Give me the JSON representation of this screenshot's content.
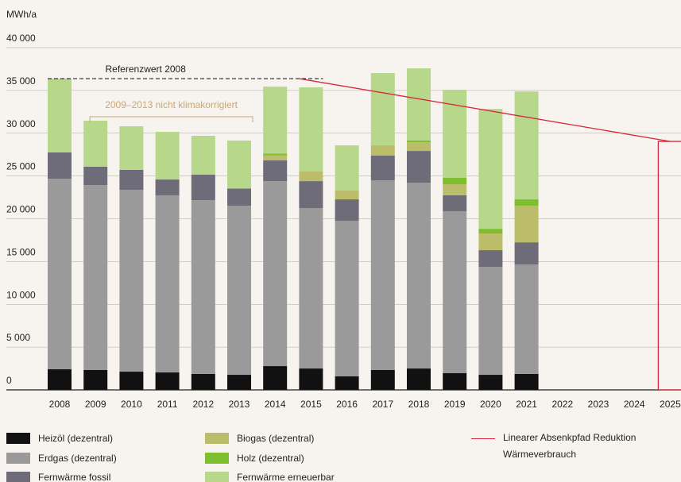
{
  "chart_data": {
    "type": "stacked_bar",
    "y_label": "MWh/a",
    "categories": [
      "2008",
      "2009",
      "2010",
      "2011",
      "2012",
      "2013",
      "2014",
      "2015",
      "2016",
      "2017",
      "2018",
      "2019",
      "2020",
      "2021",
      "2022",
      "2023",
      "2024",
      "2025"
    ],
    "series": [
      {
        "name": "Heizöl (dezentral)",
        "color": "#111111",
        "values": [
          2410,
          2320,
          2130,
          2040,
          1860,
          1760,
          2780,
          2500,
          1580,
          2320,
          2500,
          1950,
          1760,
          1860,
          null,
          null,
          null,
          null
        ]
      },
      {
        "name": "Erdgas (dezentral)",
        "color": "#9a9a9a",
        "values": [
          22270,
          21620,
          21260,
          20700,
          20320,
          19770,
          21630,
          18750,
          18190,
          22180,
          21720,
          18920,
          12620,
          12800,
          null,
          null,
          null,
          null
        ]
      },
      {
        "name": "Fernwärme fossil",
        "color": "#6e6c78",
        "values": [
          3070,
          2140,
          2320,
          1850,
          2970,
          1950,
          2410,
          3150,
          2500,
          2880,
          3710,
          1870,
          1950,
          2590,
          null,
          null,
          null,
          null
        ]
      },
      {
        "name": "Biogas (dezentral)",
        "color": "#bcbd6a",
        "values": [
          0,
          0,
          0,
          0,
          0,
          0,
          600,
          1120,
          1020,
          1200,
          1030,
          1290,
          1950,
          4270,
          null,
          null,
          null,
          null
        ]
      },
      {
        "name": "Holz (dezentral)",
        "color": "#7fbf2f",
        "values": [
          0,
          0,
          0,
          0,
          0,
          100,
          200,
          0,
          0,
          0,
          190,
          750,
          550,
          750,
          null,
          null,
          null,
          null
        ]
      },
      {
        "name": "Fernwärme erneuerbar",
        "color": "#b7d88a",
        "values": [
          8630,
          5380,
          5100,
          5570,
          4550,
          5560,
          7830,
          9840,
          5290,
          8450,
          8430,
          10300,
          14010,
          12610,
          null,
          null,
          null,
          null
        ]
      }
    ],
    "ylim": [
      0,
      40000
    ],
    "yticks": [
      {
        "value": 0,
        "label": "0"
      },
      {
        "value": 5000,
        "label": "5 000"
      },
      {
        "value": 10000,
        "label": "10 000"
      },
      {
        "value": 15000,
        "label": "15 000"
      },
      {
        "value": 20000,
        "label": "20 000"
      },
      {
        "value": 25000,
        "label": "25 000"
      },
      {
        "value": 30000,
        "label": "30 000"
      },
      {
        "value": 35000,
        "label": "35 000"
      },
      {
        "value": 40000,
        "label": "40 000"
      }
    ],
    "grid": true,
    "reference": {
      "label": "Referenzwert 2008",
      "value": 36380,
      "from": "2008",
      "to": "2015"
    },
    "annotation": {
      "text": "2009–2013 nicht klimakorrigiert",
      "from": "2009",
      "to": "2013",
      "color": "#c8a878"
    },
    "reduction_path": {
      "name": "Linearer Absenkpfad Reduktion Wärmeverbrauch",
      "color": "#d7263d",
      "x": [
        "2015",
        "2025"
      ],
      "values": [
        36380,
        29040
      ]
    }
  }
}
